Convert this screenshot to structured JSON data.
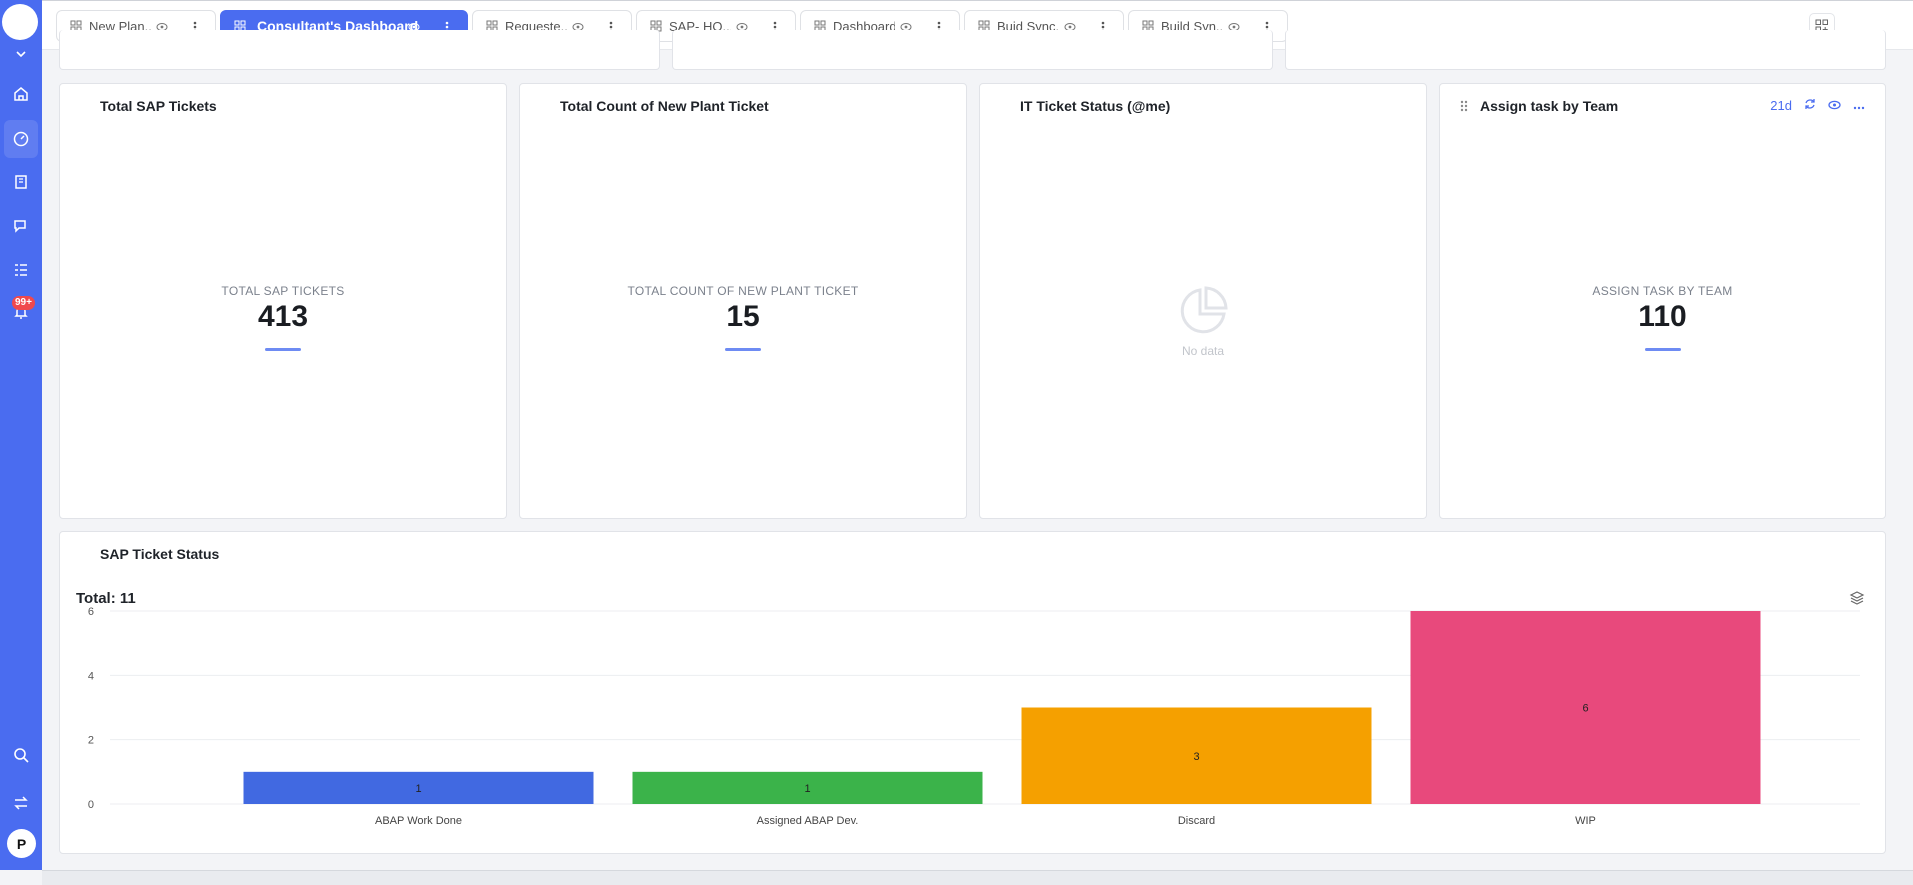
{
  "sidebar": {
    "notification_badge": "99+",
    "avatar_initial": "P",
    "accent_color": "#4a6cf0",
    "items": [
      "chevron-down-icon",
      "home-icon",
      "dashboard-icon",
      "book-icon",
      "chat-icon",
      "list-icon",
      "bell-icon",
      "search-icon",
      "swap-icon"
    ]
  },
  "tabs": [
    {
      "label": "New Plan...",
      "active": false
    },
    {
      "label": "Consultant's Dashboard",
      "active": true
    },
    {
      "label": "Requeste...",
      "active": false
    },
    {
      "label": "SAP- HO...",
      "active": false
    },
    {
      "label": "Dashboard",
      "active": false
    },
    {
      "label": "Buid Sync...",
      "active": false
    },
    {
      "label": "Build Syn...",
      "active": false
    }
  ],
  "cards": {
    "sap_tickets": {
      "title": "Total SAP Tickets",
      "label": "TOTAL SAP TICKETS",
      "value": "413"
    },
    "new_plant": {
      "title": "Total Count of New Plant Ticket",
      "label": "TOTAL COUNT OF NEW PLANT TICKET",
      "value": "15"
    },
    "it_ticket": {
      "title": "IT Ticket Status (@me)",
      "nodata": "No data"
    },
    "assign_task": {
      "title": "Assign task by Team",
      "label": "ASSIGN TASK BY TEAM",
      "value": "110",
      "period": "21d"
    }
  },
  "chart_card": {
    "title": "SAP Ticket Status",
    "total": "Total: 11"
  },
  "chart_data": {
    "type": "bar",
    "categories": [
      "ABAP Work Done",
      "Assigned ABAP Dev.",
      "Discard",
      "WIP"
    ],
    "values": [
      1,
      1,
      3,
      6
    ],
    "colors": [
      "#4169e1",
      "#3bb34a",
      "#f5a000",
      "#e8497c"
    ],
    "yticks": [
      0,
      2,
      4,
      6
    ],
    "ylim": [
      0,
      6
    ],
    "grid": true
  }
}
